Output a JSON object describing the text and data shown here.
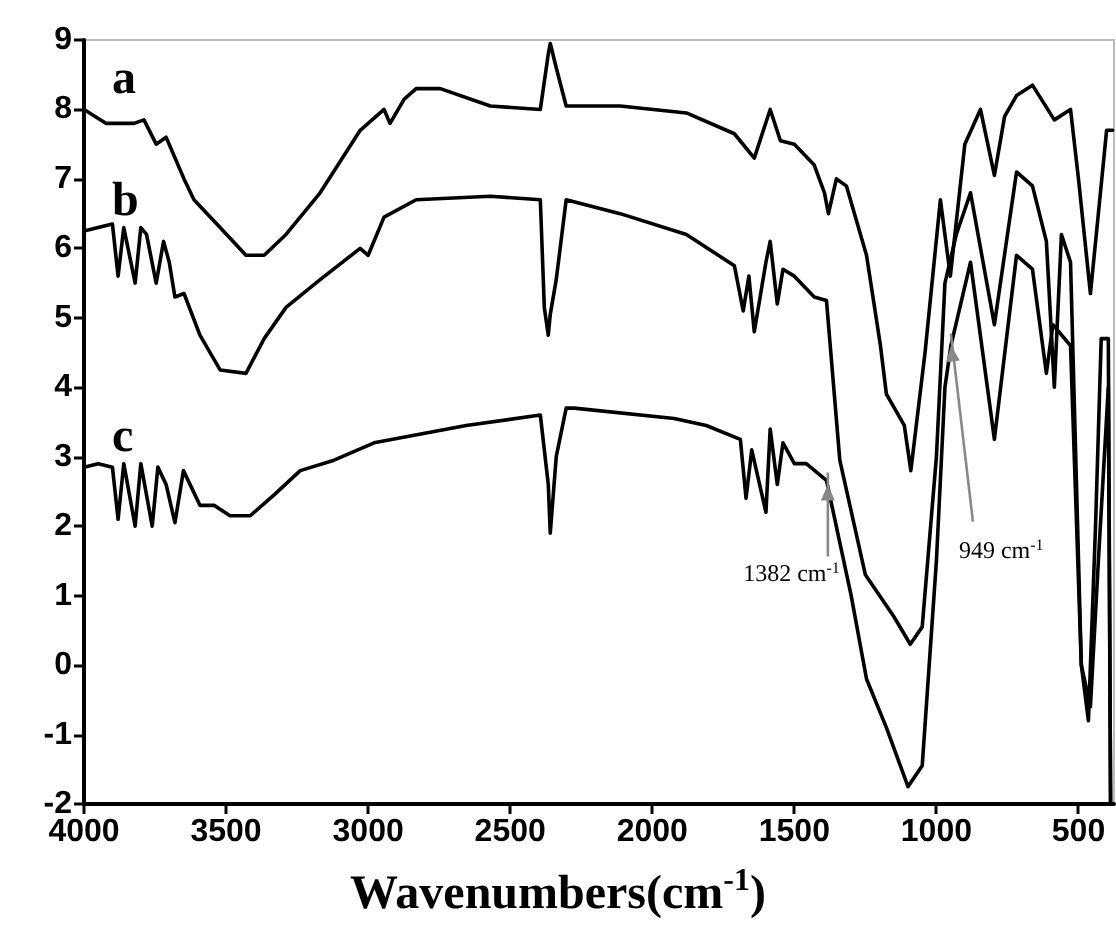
{
  "chart_data": {
    "type": "line",
    "xlabel": "Wavenumbers(cm$^{-1}$)",
    "xlim": [
      4000,
      375
    ],
    "xticks": [
      4000,
      3500,
      3000,
      2500,
      2000,
      1500,
      1000,
      500
    ],
    "ylim": [
      -2,
      9
    ],
    "yticks": [
      -2,
      -1,
      0,
      1,
      2,
      3,
      4,
      5,
      6,
      7,
      8,
      9
    ],
    "grid": false,
    "legend": false,
    "annotations": [
      {
        "text": "1382 cm$^{-1}$",
        "x": 1382,
        "y": 2.6
      },
      {
        "text": "949 cm$^{-1}$",
        "x": 949,
        "y": 4.6
      }
    ],
    "series": [
      {
        "name": "a",
        "color": "#000000",
        "x": [
          4000,
          3923,
          3824,
          3789,
          3746,
          3711,
          3648,
          3613,
          3521,
          3430,
          3366,
          3289,
          3169,
          3028,
          2944,
          2923,
          2873,
          2831,
          2746,
          2570,
          2394,
          2380,
          2366,
          2359,
          2338,
          2303,
          2113,
          1880,
          1711,
          1641,
          1585,
          1549,
          1500,
          1430,
          1394,
          1380,
          1352,
          1317,
          1246,
          1197,
          1176,
          1113,
          1090,
          1040,
          986,
          951,
          900,
          845,
          796,
          760,
          718,
          662,
          585,
          528,
          500,
          458,
          430,
          401,
          380
        ],
        "values": [
          8.0,
          7.8,
          7.8,
          7.85,
          7.5,
          7.6,
          7.0,
          6.7,
          6.3,
          5.9,
          5.9,
          6.2,
          6.8,
          7.7,
          8.0,
          7.8,
          8.15,
          8.3,
          8.3,
          8.05,
          8.0,
          8.4,
          8.8,
          8.95,
          8.6,
          8.05,
          8.05,
          7.95,
          7.65,
          7.3,
          8.0,
          7.55,
          7.5,
          7.2,
          6.8,
          6.5,
          7.0,
          6.9,
          5.9,
          4.6,
          3.9,
          3.45,
          2.8,
          4.5,
          6.7,
          5.6,
          7.5,
          8.0,
          7.05,
          7.9,
          8.2,
          8.35,
          7.85,
          8.0,
          7.0,
          5.35,
          6.5,
          7.7,
          7.7
        ]
      },
      {
        "name": "b",
        "color": "#000000",
        "x": [
          4000,
          3950,
          3900,
          3880,
          3860,
          3820,
          3800,
          3780,
          3746,
          3720,
          3700,
          3680,
          3648,
          3592,
          3521,
          3430,
          3366,
          3289,
          3169,
          3028,
          3000,
          2944,
          2831,
          2570,
          2394,
          2380,
          2366,
          2359,
          2338,
          2303,
          2113,
          1880,
          1711,
          1680,
          1660,
          1641,
          1600,
          1585,
          1560,
          1540,
          1500,
          1430,
          1387,
          1340,
          1250,
          1150,
          1092,
          1050,
          1000,
          970,
          930,
          880,
          796,
          718,
          662,
          613,
          585,
          560,
          528,
          490,
          465,
          440,
          420,
          395,
          387
        ],
        "values": [
          6.25,
          6.3,
          6.35,
          5.6,
          6.3,
          5.5,
          6.3,
          6.2,
          5.5,
          6.1,
          5.8,
          5.3,
          5.35,
          4.75,
          4.25,
          4.2,
          4.7,
          5.15,
          5.55,
          6.0,
          5.9,
          6.45,
          6.7,
          6.75,
          6.7,
          5.15,
          4.75,
          5.05,
          5.55,
          6.7,
          6.5,
          6.2,
          5.75,
          5.1,
          5.6,
          4.8,
          5.8,
          6.1,
          5.2,
          5.7,
          5.6,
          5.3,
          5.25,
          2.95,
          1.3,
          0.7,
          0.3,
          0.55,
          3.0,
          5.5,
          6.2,
          6.8,
          4.9,
          7.1,
          6.9,
          6.1,
          4.0,
          6.2,
          5.8,
          0.0,
          -0.8,
          2.0,
          4.7,
          4.7,
          -2.0
        ]
      },
      {
        "name": "c",
        "color": "#000000",
        "x": [
          4000,
          3950,
          3900,
          3880,
          3860,
          3820,
          3800,
          3760,
          3740,
          3711,
          3680,
          3650,
          3592,
          3542,
          3486,
          3415,
          3331,
          3239,
          3120,
          2979,
          2655,
          2394,
          2366,
          2359,
          2338,
          2303,
          2275,
          1923,
          1810,
          1690,
          1670,
          1650,
          1600,
          1585,
          1560,
          1540,
          1500,
          1458,
          1387,
          1300,
          1246,
          1176,
          1100,
          1050,
          1000,
          970,
          949,
          880,
          796,
          718,
          662,
          613,
          590,
          528,
          490,
          458,
          430,
          395,
          387
        ],
        "values": [
          2.85,
          2.9,
          2.85,
          2.1,
          2.9,
          2.0,
          2.9,
          2.0,
          2.85,
          2.6,
          2.05,
          2.8,
          2.3,
          2.3,
          2.15,
          2.15,
          2.45,
          2.8,
          2.95,
          3.2,
          3.45,
          3.6,
          2.6,
          1.9,
          3.0,
          3.7,
          3.7,
          3.55,
          3.45,
          3.25,
          2.4,
          3.1,
          2.2,
          3.4,
          2.6,
          3.2,
          2.9,
          2.9,
          2.66,
          1.0,
          -0.2,
          -0.9,
          -1.75,
          -1.45,
          1.5,
          4.0,
          4.6,
          5.8,
          3.25,
          5.9,
          5.7,
          4.2,
          4.9,
          4.6,
          0.0,
          -0.6,
          1.5,
          4.0,
          -2.0
        ]
      }
    ]
  }
}
